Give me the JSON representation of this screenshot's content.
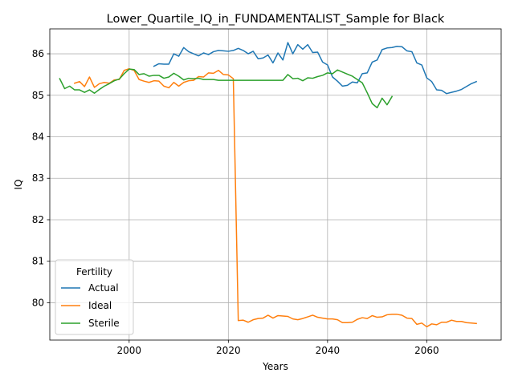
{
  "chart_data": {
    "type": "line",
    "title": "Lower_Quartile_IQ_in_FUNDAMENTALIST_Sample for Black",
    "xlabel": "Years",
    "ylabel": "IQ",
    "xlim": [
      1984,
      2075
    ],
    "ylim": [
      79.1,
      86.6
    ],
    "xticks": [
      2000,
      2020,
      2040,
      2060
    ],
    "yticks": [
      80,
      81,
      82,
      83,
      84,
      85,
      86
    ],
    "grid": true,
    "legend": {
      "title": "Fertility",
      "placement": "lower-left",
      "entries": [
        "Actual",
        "Ideal",
        "Sterile"
      ]
    },
    "series": [
      {
        "name": "Actual",
        "color": "#1f77b4",
        "points": [
          [
            2005,
            85.7
          ],
          [
            2006,
            85.76
          ],
          [
            2007,
            85.75
          ],
          [
            2008,
            85.75
          ],
          [
            2009,
            86.0
          ],
          [
            2010,
            85.94
          ],
          [
            2011,
            86.15
          ],
          [
            2012,
            86.05
          ],
          [
            2013,
            86.0
          ],
          [
            2014,
            85.95
          ],
          [
            2015,
            86.02
          ],
          [
            2016,
            85.98
          ],
          [
            2017,
            86.05
          ],
          [
            2018,
            86.08
          ],
          [
            2019,
            86.07
          ],
          [
            2020,
            86.06
          ],
          [
            2021,
            86.08
          ],
          [
            2022,
            86.13
          ],
          [
            2023,
            86.08
          ],
          [
            2024,
            86.0
          ],
          [
            2025,
            86.06
          ],
          [
            2026,
            85.88
          ],
          [
            2027,
            85.9
          ],
          [
            2028,
            85.97
          ],
          [
            2029,
            85.78
          ],
          [
            2030,
            86.02
          ],
          [
            2031,
            85.85
          ],
          [
            2032,
            86.27
          ],
          [
            2033,
            86.0
          ],
          [
            2034,
            86.22
          ],
          [
            2035,
            86.11
          ],
          [
            2036,
            86.22
          ],
          [
            2037,
            86.03
          ],
          [
            2038,
            86.04
          ],
          [
            2039,
            85.8
          ],
          [
            2040,
            85.73
          ],
          [
            2041,
            85.44
          ],
          [
            2042,
            85.34
          ],
          [
            2043,
            85.22
          ],
          [
            2044,
            85.24
          ],
          [
            2045,
            85.32
          ],
          [
            2046,
            85.3
          ],
          [
            2047,
            85.52
          ],
          [
            2048,
            85.54
          ],
          [
            2049,
            85.8
          ],
          [
            2050,
            85.85
          ],
          [
            2051,
            86.1
          ],
          [
            2052,
            86.14
          ],
          [
            2053,
            86.15
          ],
          [
            2054,
            86.18
          ],
          [
            2055,
            86.17
          ],
          [
            2056,
            86.07
          ],
          [
            2057,
            86.05
          ],
          [
            2058,
            85.78
          ],
          [
            2059,
            85.73
          ],
          [
            2060,
            85.42
          ],
          [
            2061,
            85.33
          ],
          [
            2062,
            85.13
          ],
          [
            2063,
            85.12
          ],
          [
            2064,
            85.04
          ],
          [
            2065,
            85.07
          ],
          [
            2066,
            85.1
          ],
          [
            2067,
            85.14
          ],
          [
            2068,
            85.21
          ],
          [
            2069,
            85.28
          ],
          [
            2070,
            85.33
          ]
        ]
      },
      {
        "name": "Ideal",
        "color": "#ff7f0e",
        "points": [
          [
            1989,
            85.29
          ],
          [
            1990,
            85.33
          ],
          [
            1991,
            85.21
          ],
          [
            1992,
            85.44
          ],
          [
            1993,
            85.19
          ],
          [
            1994,
            85.28
          ],
          [
            1995,
            85.31
          ],
          [
            1996,
            85.29
          ],
          [
            1997,
            85.37
          ],
          [
            1998,
            85.38
          ],
          [
            1999,
            85.6
          ],
          [
            2000,
            85.64
          ],
          [
            2001,
            85.6
          ],
          [
            2002,
            85.38
          ],
          [
            2003,
            85.34
          ],
          [
            2004,
            85.31
          ],
          [
            2005,
            85.35
          ],
          [
            2006,
            85.34
          ],
          [
            2007,
            85.22
          ],
          [
            2008,
            85.18
          ],
          [
            2009,
            85.31
          ],
          [
            2010,
            85.22
          ],
          [
            2011,
            85.31
          ],
          [
            2012,
            85.35
          ],
          [
            2013,
            85.36
          ],
          [
            2014,
            85.45
          ],
          [
            2015,
            85.44
          ],
          [
            2016,
            85.54
          ],
          [
            2017,
            85.53
          ],
          [
            2018,
            85.6
          ],
          [
            2019,
            85.5
          ],
          [
            2020,
            85.49
          ],
          [
            2021,
            85.4
          ],
          [
            2022,
            79.57
          ],
          [
            2023,
            79.58
          ],
          [
            2024,
            79.53
          ],
          [
            2025,
            79.59
          ],
          [
            2026,
            79.62
          ],
          [
            2027,
            79.63
          ],
          [
            2028,
            79.7
          ],
          [
            2029,
            79.63
          ],
          [
            2030,
            79.69
          ],
          [
            2031,
            79.68
          ],
          [
            2032,
            79.67
          ],
          [
            2033,
            79.61
          ],
          [
            2034,
            79.59
          ],
          [
            2035,
            79.62
          ],
          [
            2036,
            79.66
          ],
          [
            2037,
            79.7
          ],
          [
            2038,
            79.65
          ],
          [
            2039,
            79.63
          ],
          [
            2040,
            79.61
          ],
          [
            2041,
            79.61
          ],
          [
            2042,
            79.59
          ],
          [
            2043,
            79.52
          ],
          [
            2044,
            79.52
          ],
          [
            2045,
            79.53
          ],
          [
            2046,
            79.6
          ],
          [
            2047,
            79.64
          ],
          [
            2048,
            79.62
          ],
          [
            2049,
            79.69
          ],
          [
            2050,
            79.65
          ],
          [
            2051,
            79.66
          ],
          [
            2052,
            79.71
          ],
          [
            2053,
            79.72
          ],
          [
            2054,
            79.72
          ],
          [
            2055,
            79.7
          ],
          [
            2056,
            79.63
          ],
          [
            2057,
            79.62
          ],
          [
            2058,
            79.48
          ],
          [
            2059,
            79.51
          ],
          [
            2060,
            79.42
          ],
          [
            2061,
            79.49
          ],
          [
            2062,
            79.47
          ],
          [
            2063,
            79.53
          ],
          [
            2064,
            79.53
          ],
          [
            2065,
            79.58
          ],
          [
            2066,
            79.55
          ],
          [
            2067,
            79.55
          ],
          [
            2068,
            79.52
          ],
          [
            2069,
            79.51
          ],
          [
            2070,
            79.5
          ]
        ]
      },
      {
        "name": "Sterile",
        "color": "#2ca02c",
        "points": [
          [
            1986,
            85.4
          ],
          [
            1987,
            85.16
          ],
          [
            1988,
            85.22
          ],
          [
            1989,
            85.13
          ],
          [
            1990,
            85.13
          ],
          [
            1991,
            85.07
          ],
          [
            1992,
            85.13
          ],
          [
            1993,
            85.05
          ],
          [
            1994,
            85.14
          ],
          [
            1995,
            85.22
          ],
          [
            1996,
            85.28
          ],
          [
            1997,
            85.35
          ],
          [
            1998,
            85.39
          ],
          [
            1999,
            85.52
          ],
          [
            2000,
            85.63
          ],
          [
            2001,
            85.62
          ],
          [
            2002,
            85.5
          ],
          [
            2003,
            85.52
          ],
          [
            2004,
            85.46
          ],
          [
            2005,
            85.48
          ],
          [
            2006,
            85.48
          ],
          [
            2007,
            85.41
          ],
          [
            2008,
            85.44
          ],
          [
            2009,
            85.53
          ],
          [
            2010,
            85.46
          ],
          [
            2011,
            85.37
          ],
          [
            2012,
            85.41
          ],
          [
            2013,
            85.4
          ],
          [
            2014,
            85.41
          ],
          [
            2015,
            85.38
          ],
          [
            2016,
            85.38
          ],
          [
            2017,
            85.38
          ],
          [
            2018,
            85.36
          ],
          [
            2019,
            85.36
          ],
          [
            2020,
            85.36
          ],
          [
            2021,
            85.36
          ],
          [
            2022,
            85.36
          ],
          [
            2023,
            85.36
          ],
          [
            2024,
            85.36
          ],
          [
            2025,
            85.36
          ],
          [
            2026,
            85.36
          ],
          [
            2027,
            85.36
          ],
          [
            2028,
            85.36
          ],
          [
            2029,
            85.36
          ],
          [
            2030,
            85.36
          ],
          [
            2031,
            85.36
          ],
          [
            2032,
            85.5
          ],
          [
            2033,
            85.4
          ],
          [
            2034,
            85.41
          ],
          [
            2035,
            85.35
          ],
          [
            2036,
            85.42
          ],
          [
            2037,
            85.41
          ],
          [
            2038,
            85.45
          ],
          [
            2039,
            85.48
          ],
          [
            2040,
            85.54
          ],
          [
            2041,
            85.52
          ],
          [
            2042,
            85.61
          ],
          [
            2043,
            85.56
          ],
          [
            2044,
            85.51
          ],
          [
            2045,
            85.46
          ],
          [
            2046,
            85.38
          ],
          [
            2047,
            85.3
          ],
          [
            2048,
            85.06
          ],
          [
            2049,
            84.8
          ],
          [
            2050,
            84.7
          ],
          [
            2051,
            84.93
          ],
          [
            2052,
            84.77
          ],
          [
            2053,
            84.97
          ]
        ]
      }
    ]
  }
}
